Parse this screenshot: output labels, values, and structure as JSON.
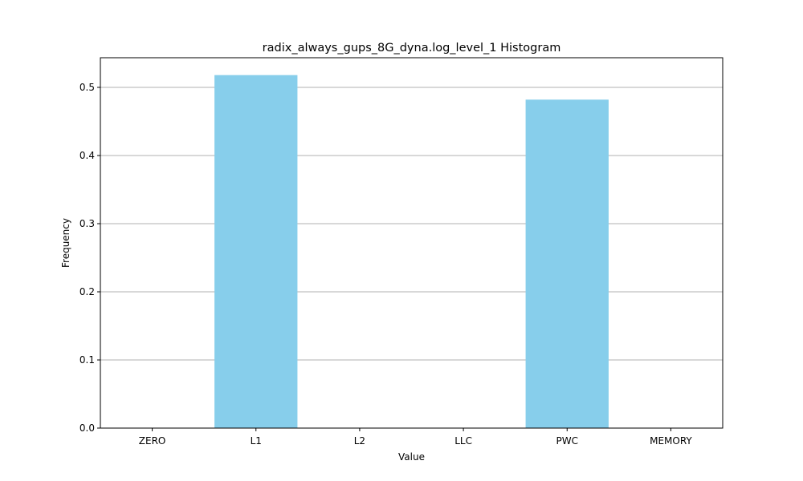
{
  "chart_data": {
    "type": "bar",
    "title": "radix_always_gups_8G_dyna.log_level_1 Histogram",
    "xlabel": "Value",
    "ylabel": "Frequency",
    "categories": [
      "ZERO",
      "L1",
      "L2",
      "LLC",
      "PWC",
      "MEMORY"
    ],
    "values": [
      0,
      0.518,
      0,
      0,
      0.482,
      0
    ],
    "ylim": [
      0,
      0.5435
    ],
    "yticks": [
      "0.0",
      "0.1",
      "0.2",
      "0.3",
      "0.4",
      "0.5"
    ],
    "grid": "y",
    "bar_color": "#87CEEB",
    "grid_color": "#b0b0b0"
  }
}
